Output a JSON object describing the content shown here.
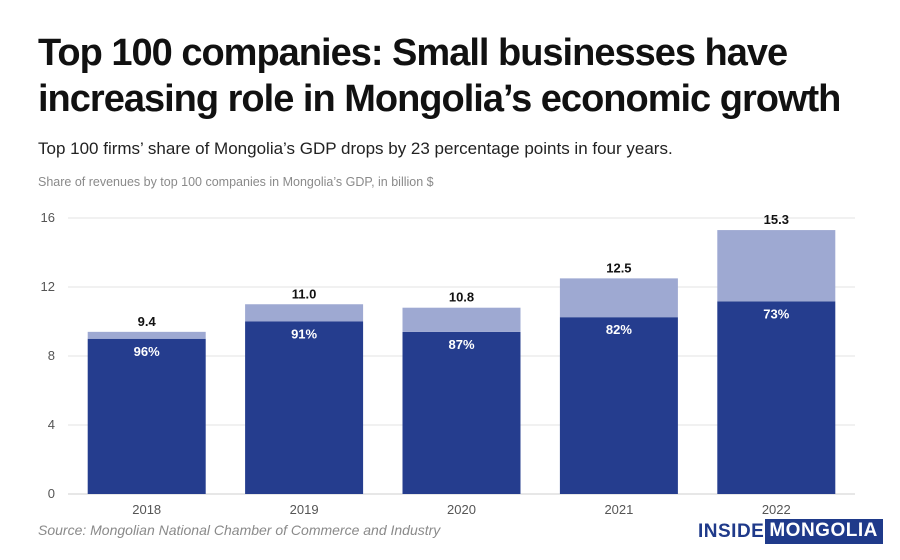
{
  "header": {
    "title": "Top 100 companies: Small businesses have increasing role in Mongolia’s economic growth",
    "subtitle": "Top 100 firms’ share of Mongolia’s GDP drops by 23 percentage points in four years.",
    "note": "Share of revenues by top 100 companies in Mongolia’s GDP, in billion $"
  },
  "footer": {
    "source": "Source: Mongolian National Chamber of Commerce and Industry",
    "logo_part1": "INSIDE",
    "logo_part2": "MONGOLIA"
  },
  "colors": {
    "dark": "#253d8e",
    "light": "#9ea9d2",
    "grid": "#e3e3e3",
    "axis_text": "#555555"
  },
  "chart_data": {
    "type": "bar",
    "stacked": true,
    "categories": [
      "2018",
      "2019",
      "2020",
      "2021",
      "2022"
    ],
    "totals": [
      9.4,
      11.0,
      10.8,
      12.5,
      15.3
    ],
    "total_labels": [
      "9.4",
      "11.0",
      "10.8",
      "12.5",
      "15.3"
    ],
    "share_labels": [
      "96%",
      "91%",
      "87%",
      "82%",
      "73%"
    ],
    "series": [
      {
        "values": [
          9.0,
          10.0,
          9.4,
          10.25,
          11.17
        ]
      },
      {
        "values": [
          0.4,
          1.0,
          1.4,
          2.25,
          4.13
        ]
      }
    ],
    "ylim": [
      0,
      16
    ],
    "yticks": [
      0,
      4,
      8,
      12,
      16
    ],
    "grid": true
  }
}
